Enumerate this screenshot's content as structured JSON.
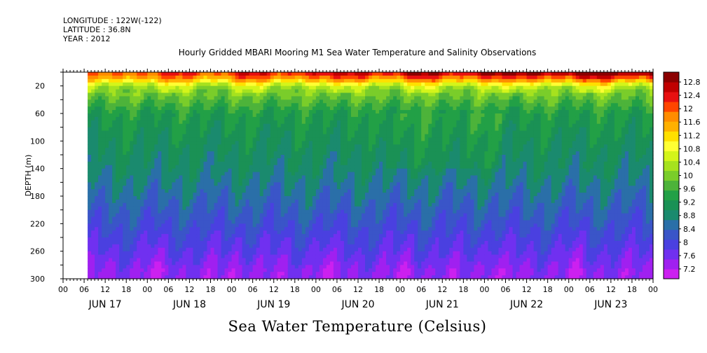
{
  "header": {
    "longitude": "LONGITUDE : 122W(-122)",
    "latitude": "LATITUDE : 36.8N",
    "year": "YEAR : 2012"
  },
  "chart_data": {
    "type": "heatmap",
    "title": "Hourly Gridded MBARI Mooring M1 Sea Water Temperature and Salinity Observations",
    "xlabel": "Sea Water Temperature (Celsius)",
    "ylabel": "DEPTH (m)",
    "y_ticks": [
      "20",
      "60",
      "100",
      "140",
      "180",
      "220",
      "260",
      "300"
    ],
    "y_range": [
      0,
      300
    ],
    "y_reversed": true,
    "x_hour_ticks": [
      "00",
      "06",
      "12",
      "18",
      "00",
      "06",
      "12",
      "18",
      "00",
      "06",
      "12",
      "18",
      "00",
      "06",
      "12",
      "18",
      "00",
      "06",
      "12",
      "18",
      "00",
      "06",
      "12",
      "18",
      "00",
      "06",
      "12",
      "18",
      "00"
    ],
    "x_day_labels": [
      "JUN 17",
      "JUN 18",
      "JUN 19",
      "JUN 20",
      "JUN 21",
      "JUN 22",
      "JUN 23"
    ],
    "x_range_hours": [
      0,
      168
    ],
    "data_start_hour": 7,
    "colorbar": {
      "levels": [
        "12.8",
        "12.4",
        "12",
        "11.6",
        "11.2",
        "10.8",
        "10.4",
        "10",
        "9.6",
        "9.2",
        "8.8",
        "8.4",
        "8",
        "7.6",
        "7.2"
      ],
      "colors": [
        "#8b0000",
        "#c00000",
        "#e81010",
        "#ff4500",
        "#ff8c00",
        "#ffb000",
        "#ffe000",
        "#ffff33",
        "#d4f51a",
        "#a6e21e",
        "#7acd2a",
        "#4db33a",
        "#22a046",
        "#1a9155",
        "#1a8a6e",
        "#2a6fa8",
        "#3a55c8",
        "#4a40e0",
        "#7030f0",
        "#a020f0",
        "#cc20f0"
      ]
    },
    "temperature_by_depth": {
      "depths": [
        10,
        20,
        35,
        60,
        100,
        140,
        180,
        220,
        260,
        290
      ],
      "mean_temps": [
        11.3,
        10.3,
        9.9,
        9.4,
        9.15,
        8.95,
        8.65,
        8.35,
        8.0,
        7.7
      ]
    }
  }
}
